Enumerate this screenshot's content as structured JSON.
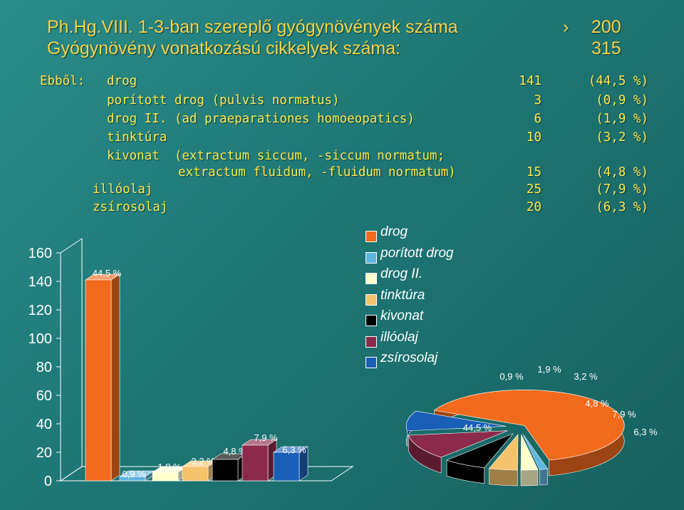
{
  "header": {
    "line1": "Ph.Hg.VIII. 1-3-ban szereplő gyógynövények száma",
    "arrow": "›",
    "line1_value": "200",
    "line2": "Gyógynövény vonatkozású cikkelyek száma:",
    "line2_value": "315"
  },
  "table": {
    "prefix": "Ebből:",
    "rows": [
      {
        "label": "drog",
        "count": "141",
        "pct": "(44,5 %)"
      },
      {
        "label": "porított drog (pulvis normatus)",
        "count": "3",
        "pct": "(0,9 %)"
      },
      {
        "label": "drog II. (ad praeparationes homoeopatics)",
        "count": "6",
        "pct": "(1,9 %)"
      },
      {
        "label": "tinktúra",
        "count": "10",
        "pct": "(3,2 %)"
      },
      {
        "label": "kivonat  (extractum siccum, -siccum normatum;",
        "count": "",
        "pct": ""
      },
      {
        "label": "extractum fluidum, -fluidum normatum)",
        "count": "15",
        "pct": "(4,8 %)"
      },
      {
        "label": "illóolaj",
        "count": "25",
        "pct": "(7,9 %)"
      },
      {
        "label": "zsírosolaj",
        "count": "20",
        "pct": "(6,3 %)"
      }
    ]
  },
  "chart_data": [
    {
      "type": "bar",
      "categories": [
        "drog",
        "porított drog",
        "drog II.",
        "tinktúra",
        "kivonat",
        "illóolaj",
        "zsírosolaj"
      ],
      "values": [
        141,
        3,
        6,
        10,
        15,
        25,
        20
      ],
      "data_labels": [
        "44,5 %",
        "0,9 %",
        "1,9 %",
        "3,2 %",
        "4,8 %",
        "7,9 %",
        "6,3 %"
      ],
      "ylim": [
        0,
        160
      ],
      "yticks": [
        "0",
        "20",
        "40",
        "60",
        "80",
        "100",
        "120",
        "140",
        "160"
      ],
      "colors": [
        "#f26a1b",
        "#5fb4e0",
        "#ffffcc",
        "#f5c36a",
        "#000000",
        "#8b2a4b",
        "#1a5fb8"
      ],
      "style": "3d"
    },
    {
      "type": "pie",
      "categories": [
        "drog",
        "porított drog",
        "drog II.",
        "tinktúra",
        "kivonat",
        "illóolaj",
        "zsírosolaj"
      ],
      "values": [
        44.5,
        0.9,
        1.9,
        3.2,
        4.8,
        7.9,
        6.3
      ],
      "data_labels": [
        "44,5 %",
        "0,9 %",
        "1,9 %",
        "3,2 %",
        "4,8 %",
        "7,9 %",
        "6,3 %"
      ],
      "colors": [
        "#f26a1b",
        "#5fb4e0",
        "#ffffcc",
        "#f5c36a",
        "#000000",
        "#8b2a4b",
        "#1a5fb8"
      ],
      "style": "3d-exploded"
    }
  ],
  "legend": {
    "items": [
      {
        "label": "drog",
        "color": "#f26a1b"
      },
      {
        "label": "porított drog",
        "color": "#5fb4e0"
      },
      {
        "label": "drog II.",
        "color": "#ffffcc"
      },
      {
        "label": "tinktúra",
        "color": "#f5c36a"
      },
      {
        "label": "kivonat",
        "color": "#000000"
      },
      {
        "label": "illóolaj",
        "color": "#8b2a4b"
      },
      {
        "label": "zsírosolaj",
        "color": "#1a5fb8"
      }
    ]
  }
}
